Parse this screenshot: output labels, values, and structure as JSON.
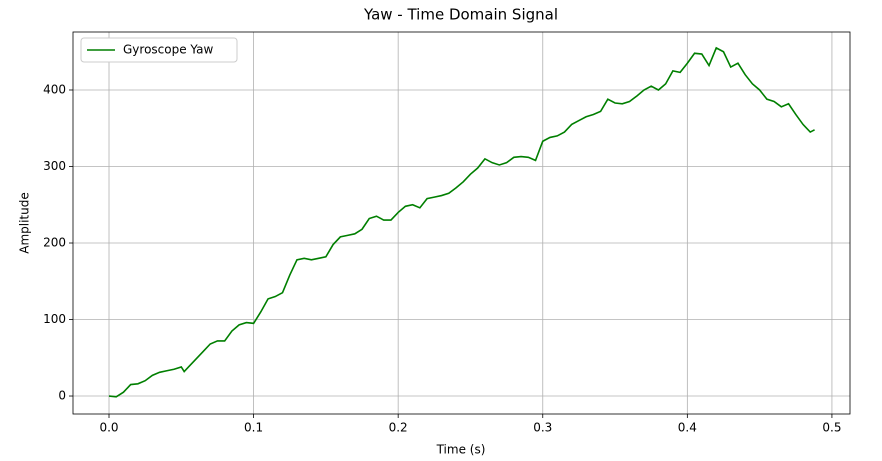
{
  "chart_data": {
    "type": "line",
    "title": "Yaw - Time Domain Signal",
    "x_label": "Time (s)",
    "y_label": "Amplitude",
    "x": [
      0,
      0.005,
      0.01,
      0.015,
      0.02,
      0.025,
      0.03,
      0.035,
      0.04,
      0.045,
      0.05,
      0.052,
      0.055,
      0.06,
      0.065,
      0.07,
      0.075,
      0.08,
      0.085,
      0.09,
      0.095,
      0.1,
      0.105,
      0.11,
      0.115,
      0.12,
      0.125,
      0.13,
      0.135,
      0.14,
      0.145,
      0.15,
      0.155,
      0.16,
      0.165,
      0.17,
      0.175,
      0.18,
      0.185,
      0.19,
      0.195,
      0.2,
      0.205,
      0.21,
      0.215,
      0.22,
      0.225,
      0.23,
      0.235,
      0.24,
      0.245,
      0.25,
      0.255,
      0.26,
      0.265,
      0.27,
      0.275,
      0.28,
      0.285,
      0.29,
      0.295,
      0.3,
      0.305,
      0.31,
      0.315,
      0.32,
      0.325,
      0.33,
      0.335,
      0.34,
      0.345,
      0.35,
      0.355,
      0.36,
      0.365,
      0.37,
      0.375,
      0.38,
      0.385,
      0.39,
      0.395,
      0.4,
      0.405,
      0.41,
      0.415,
      0.42,
      0.425,
      0.43,
      0.435,
      0.44,
      0.445,
      0.45,
      0.455,
      0.46,
      0.465,
      0.47,
      0.475,
      0.48,
      0.485,
      0.488
    ],
    "series": [
      {
        "name": "Gyroscope Yaw",
        "color": "#007f00",
        "values": [
          0,
          -1,
          5,
          15,
          16,
          20,
          27,
          31,
          33,
          35,
          38,
          32,
          38,
          48,
          58,
          68,
          72,
          72,
          85,
          93,
          96,
          95,
          110,
          127,
          130,
          135,
          158,
          178,
          180,
          178,
          180,
          182,
          198,
          208,
          210,
          212,
          218,
          232,
          235,
          230,
          230,
          240,
          248,
          250,
          246,
          258,
          260,
          262,
          265,
          272,
          280,
          290,
          298,
          310,
          305,
          302,
          305,
          312,
          313,
          312,
          308,
          333,
          338,
          340,
          345,
          355,
          360,
          365,
          368,
          372,
          388,
          383,
          382,
          385,
          392,
          400,
          405,
          400,
          408,
          425,
          423,
          435,
          448,
          447,
          432,
          455,
          450,
          430,
          435,
          420,
          408,
          400,
          388,
          385,
          378,
          382,
          368,
          355,
          345,
          348
        ]
      }
    ],
    "xlim": [
      -0.0249,
      0.5125
    ],
    "ylim": [
      -23.5,
      475.8
    ],
    "xticks": [
      {
        "value": 0,
        "label": "0.0"
      },
      0.1,
      0.2,
      0.3,
      0.4,
      0.5
    ],
    "yticks": [
      0,
      100,
      200,
      300,
      400
    ],
    "grid": true,
    "legend": "upper left"
  }
}
